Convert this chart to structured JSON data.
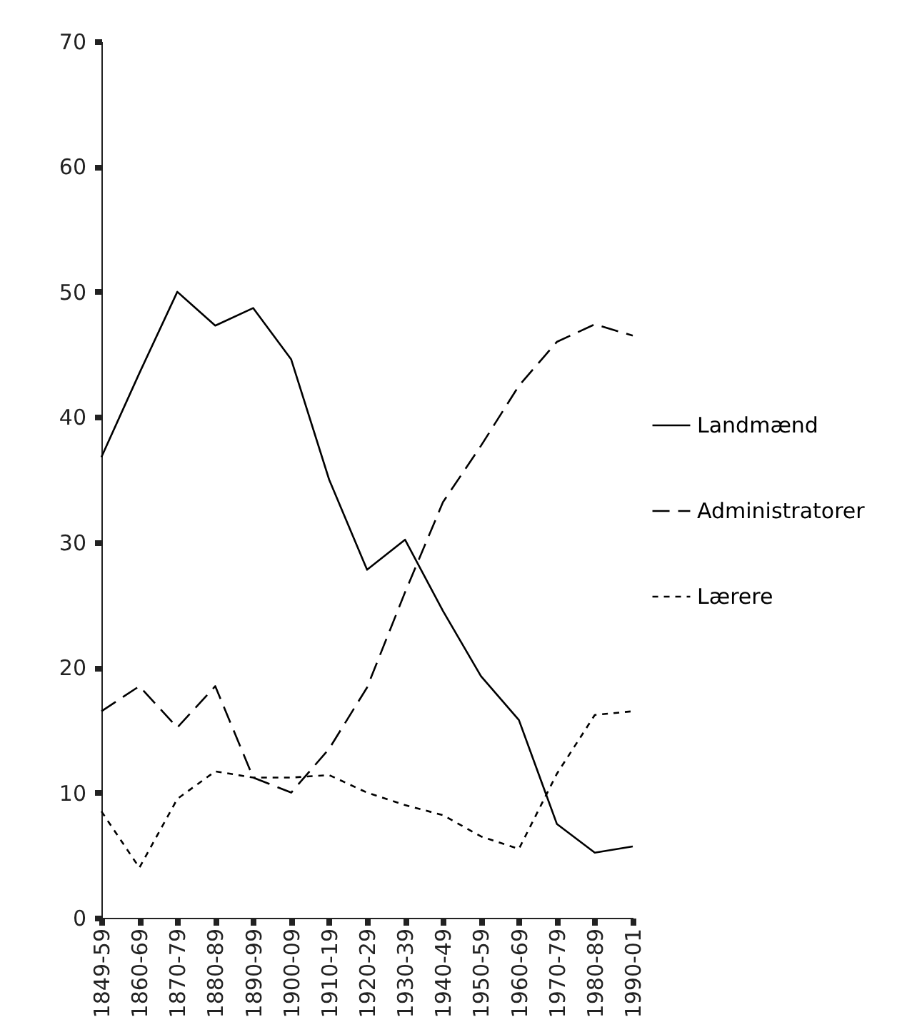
{
  "chart_data": {
    "type": "line",
    "categories": [
      "1849-59",
      "1860-69",
      "1870-79",
      "1880-89",
      "1890-99",
      "1900-09",
      "1910-19",
      "1920-29",
      "1930-39",
      "1940-49",
      "1950-59",
      "1960-69",
      "1970-79",
      "1980-89",
      "1990-01"
    ],
    "series": [
      {
        "name": "Landmænd",
        "color": "#000000",
        "line_style": "solid",
        "values": [
          36.8,
          43.5,
          50,
          47.3,
          48.7,
          44.6,
          35,
          27.8,
          30.2,
          24.5,
          19.3,
          15.8,
          7.5,
          5.2,
          5.7
        ]
      },
      {
        "name": "Administratorer",
        "color": "#000000",
        "line_style": "dashed",
        "values": [
          16.5,
          18.5,
          15.2,
          18.5,
          11.2,
          10,
          13.5,
          18.4,
          26,
          33.2,
          37.7,
          42.5,
          46,
          47.4,
          46.5
        ]
      },
      {
        "name": "Lærere",
        "color": "#000000",
        "line_style": "dotted",
        "values": [
          8.5,
          4,
          9.5,
          11.7,
          11.2,
          11.2,
          11.4,
          10,
          9,
          8.2,
          6.5,
          5.5,
          11.5,
          16.2,
          16.5
        ]
      }
    ],
    "ylim": [
      0,
      70
    ],
    "yticks": [
      0,
      10,
      20,
      30,
      40,
      50,
      60,
      70
    ],
    "grid": false,
    "legend": "right",
    "marker": "none"
  }
}
